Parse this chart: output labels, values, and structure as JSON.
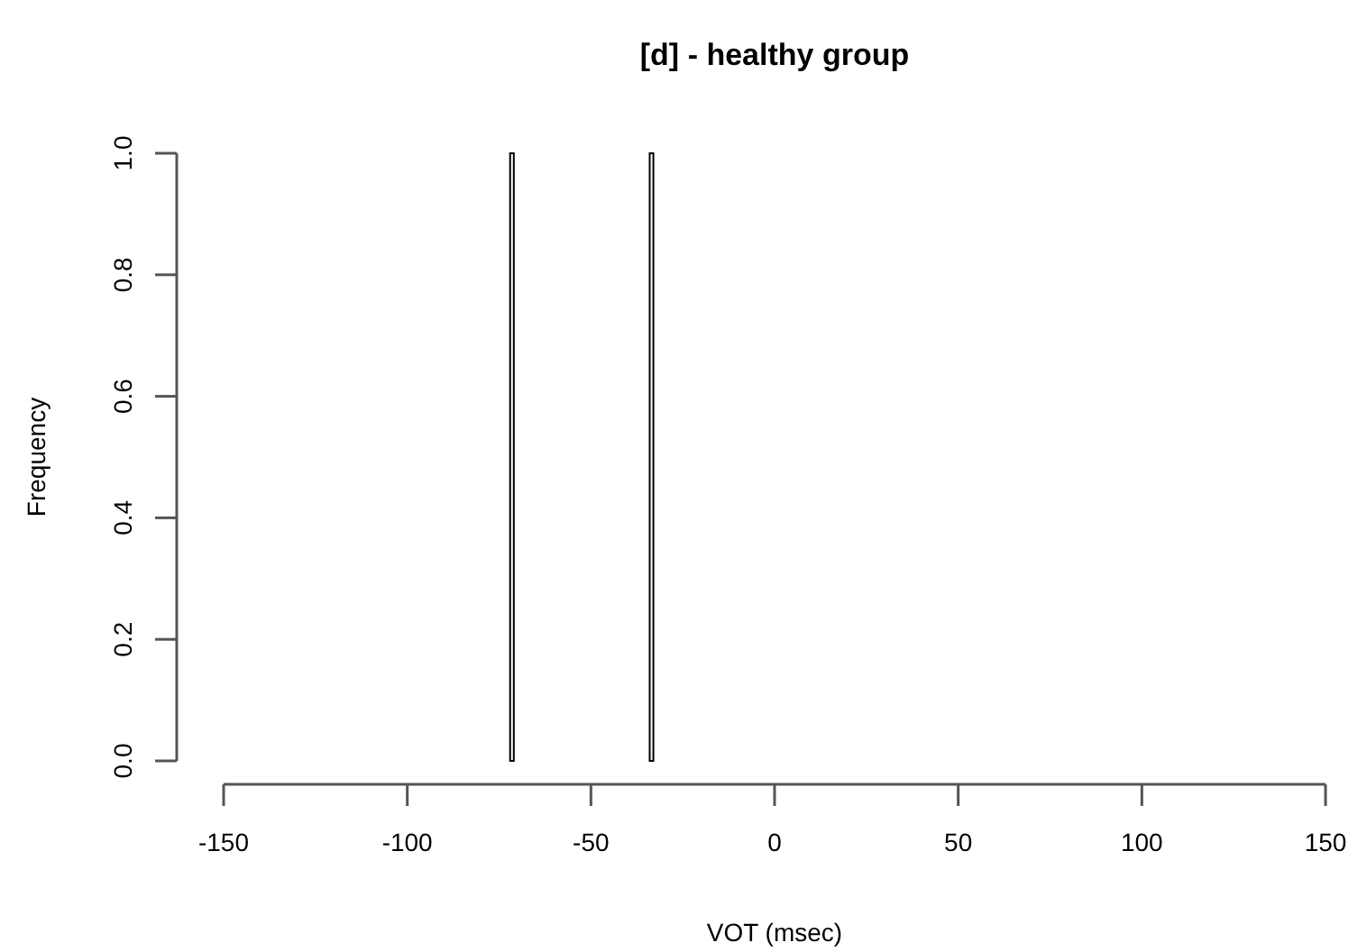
{
  "chart_data": {
    "type": "histogram",
    "title": "[d] - healthy group",
    "xlabel": "VOT (msec)",
    "ylabel": "Frequency",
    "bins": [
      -72,
      -71,
      -70,
      -69,
      -68,
      -67,
      -66,
      -65,
      -64,
      -63,
      -62,
      -61,
      -60,
      -59,
      -58,
      -57,
      -56,
      -55,
      -54,
      -53,
      -52,
      -51,
      -50,
      -49,
      -48,
      -47,
      -46,
      -45,
      -44,
      -43,
      -42,
      -41,
      -40,
      -39,
      -38,
      -37,
      -36,
      -35,
      -34,
      -33
    ],
    "values": [
      1,
      0,
      0,
      0,
      0,
      0,
      0,
      0,
      0,
      0,
      0,
      0,
      0,
      0,
      0,
      0,
      0,
      0,
      0,
      0,
      0,
      0,
      0,
      0,
      0,
      0,
      0,
      0,
      0,
      0,
      0,
      0,
      0,
      0,
      0,
      0,
      0,
      0,
      1
    ],
    "color": "#ffffff",
    "xlim": [
      -150,
      150
    ],
    "xticks": [
      -150,
      -100,
      -50,
      0,
      50,
      100,
      150
    ],
    "ylim": [
      0,
      1
    ],
    "yticks": [
      {
        "value": 0,
        "label": "0.0"
      },
      0.2,
      0.4,
      0.6,
      0.8,
      {
        "value": 1,
        "label": "1.0"
      }
    ],
    "grid": false
  }
}
